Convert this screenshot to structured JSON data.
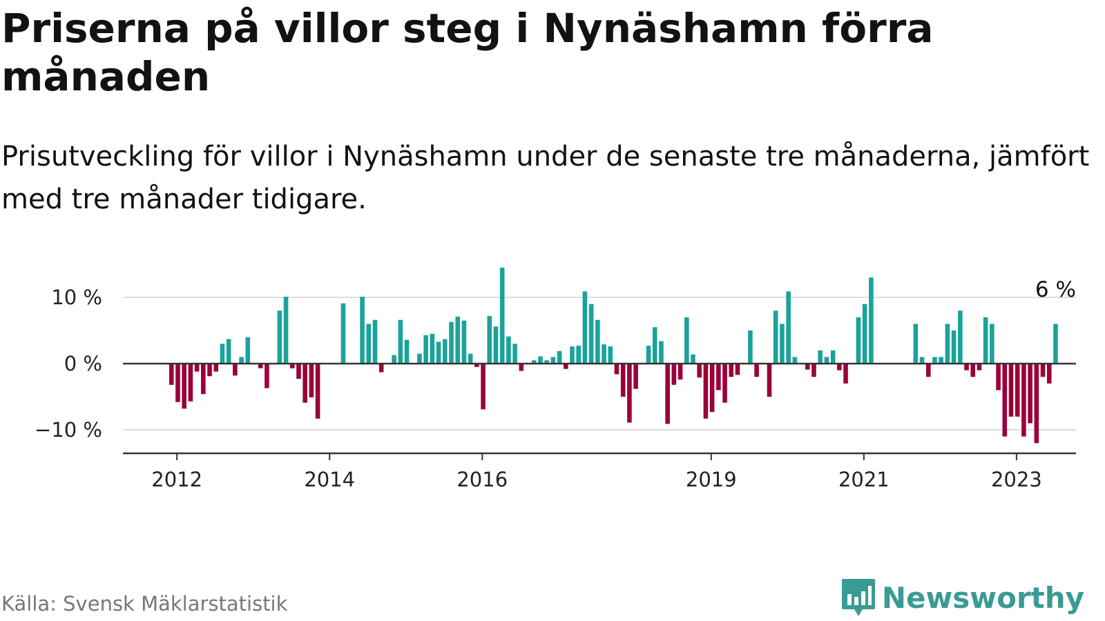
{
  "header": {
    "title": "Priserna på villor steg i Nynäshamn förra månaden",
    "subtitle": "Prisutveckling för villor i Nynäshamn under de senaste tre månaderna, jämfört med tre månader tidigare."
  },
  "footer": {
    "source": "Källa: Svensk Mäklarstatistik",
    "brand": "Newsworthy"
  },
  "colors": {
    "positive": "#1aa39a",
    "negative": "#9b0039",
    "grid": "#dddddd",
    "axis": "#333333",
    "brand": "#3a9a94"
  },
  "icons": {
    "brand_logo": "newsworthy-logo-icon"
  },
  "chart_data": {
    "type": "bar",
    "title": "Priserna på villor steg i Nynäshamn förra månaden",
    "xlabel": "",
    "ylabel": "",
    "unit": "%",
    "ylim": [
      -14,
      14
    ],
    "grid": true,
    "y_ticks": [
      {
        "value": 10,
        "label": "10 %"
      },
      {
        "value": 0,
        "label": "0 %"
      },
      {
        "value": -10,
        "label": "−10 %"
      }
    ],
    "x_ticks": [
      {
        "index": 8,
        "label": "2012"
      },
      {
        "index": 32,
        "label": "2014"
      },
      {
        "index": 56,
        "label": "2016"
      },
      {
        "index": 92,
        "label": "2019"
      },
      {
        "index": 116,
        "label": "2021"
      },
      {
        "index": 140,
        "label": "2023"
      }
    ],
    "last_label": "6 %",
    "values": [
      0,
      0,
      0,
      0,
      0,
      0,
      0,
      -3.2,
      -5.8,
      -6.8,
      -5.7,
      -1.2,
      -4.6,
      -1.9,
      -1.2,
      3.0,
      3.7,
      -1.8,
      1.0,
      4.0,
      0,
      -0.7,
      -3.7,
      0,
      8.0,
      10.1,
      -0.7,
      -2.3,
      -5.9,
      -5.1,
      -8.3,
      0,
      0,
      0,
      9.1,
      0,
      0,
      10.1,
      6.0,
      6.6,
      -1.3,
      0,
      1.3,
      6.6,
      3.6,
      0,
      1.5,
      4.3,
      4.5,
      3.3,
      3.7,
      6.3,
      7.1,
      6.5,
      1.5,
      -0.5,
      -6.9,
      7.2,
      5.6,
      14.5,
      4.1,
      3.0,
      -1.1,
      0,
      0.5,
      1.1,
      0.5,
      1.0,
      1.9,
      -0.8,
      2.6,
      2.7,
      10.9,
      9.0,
      6.6,
      2.9,
      2.6,
      -1.6,
      -5.0,
      -8.9,
      -3.8,
      0,
      2.7,
      5.5,
      3.4,
      -9.1,
      -3.2,
      -2.4,
      7.0,
      1.4,
      -2.1,
      -8.3,
      -7.3,
      -4.0,
      -5.9,
      -2.0,
      -1.7,
      0,
      5.0,
      -2.0,
      0,
      -5.0,
      8.0,
      6.0,
      10.9,
      1.0,
      0,
      -0.9,
      -2.0,
      2.0,
      1.0,
      2.0,
      -1.0,
      -3.0,
      0,
      7.0,
      9.0,
      13.0,
      0,
      0,
      0,
      0,
      0,
      0,
      6.0,
      1.0,
      -2.0,
      1.0,
      1.0,
      6.0,
      5.0,
      8.0,
      -1.0,
      -2.0,
      -1.0,
      7.0,
      6.0,
      -4.0,
      -11.0,
      -8.0,
      -8.0,
      -11.0,
      -9.0,
      -12.0,
      -2.0,
      -3.0,
      6.0
    ]
  }
}
